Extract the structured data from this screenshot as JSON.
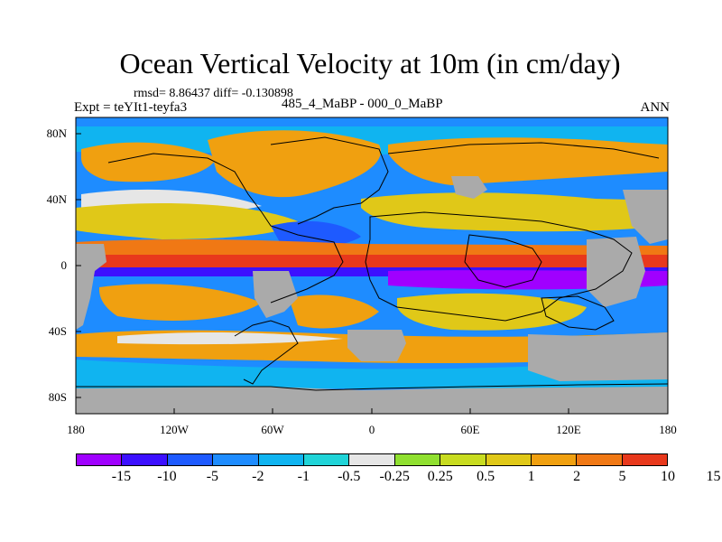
{
  "title": "Ocean Vertical Velocity at 10m (in cm/day)",
  "stats": "rmsd= 8.86437 diff= -0.130898",
  "experiment": "Expt = teYIt1-teyfa3",
  "center_label": "485_4_MaBP - 000_0_MaBP",
  "season": "ANN",
  "x_ticks": [
    "180",
    "120W",
    "60W",
    "0",
    "60E",
    "120E",
    "180"
  ],
  "y_ticks": [
    "80N",
    "40N",
    "0",
    "40S",
    "80S"
  ],
  "colorbar": {
    "colors": [
      "#a000ff",
      "#3c10ff",
      "#1e5aff",
      "#1e8cff",
      "#10b4f0",
      "#20d4d8",
      "#e6e6e6",
      "#90e030",
      "#c8dc20",
      "#e0c818",
      "#f0a010",
      "#f07814",
      "#e8381c"
    ],
    "labels": [
      "-15",
      "-10",
      "-5",
      "-2",
      "-1",
      "-0.5",
      "-0.25",
      "0.25",
      "0.5",
      "1",
      "2",
      "5",
      "10",
      "15"
    ]
  },
  "land_color": "#aaaaaa",
  "chart_data": {
    "type": "heatmap",
    "title": "Ocean Vertical Velocity at 10m (in cm/day)",
    "units": "cm/day",
    "x_range": [
      -180,
      180
    ],
    "y_range": [
      -90,
      90
    ],
    "contour_levels": [
      -15,
      -10,
      -5,
      -2,
      -1,
      -0.5,
      -0.25,
      0.25,
      0.5,
      1,
      2,
      5,
      10,
      15
    ]
  }
}
